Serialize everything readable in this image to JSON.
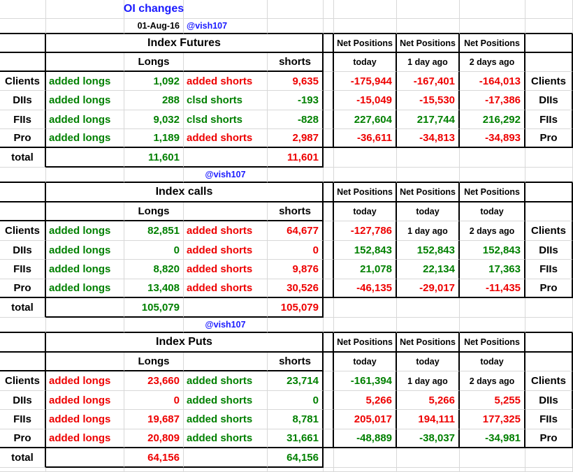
{
  "title": "OI changes",
  "date": "01-Aug-16",
  "handle": "@vish107",
  "net_header": "Net Positions",
  "colors": {
    "green": "#008000",
    "red": "#ee0000",
    "blue": "#1a1aff",
    "black": "#000000"
  },
  "sections": [
    {
      "title": "Index Futures",
      "longs_header": "Longs",
      "shorts_header": "shorts",
      "net_subheaders": [
        "today",
        "1 day ago",
        "2 days ago"
      ],
      "rows": [
        {
          "label": "Clients",
          "long_action": {
            "text": "added longs",
            "color": "green"
          },
          "long_value": {
            "text": "1,092",
            "color": "green"
          },
          "short_action": {
            "text": "added shorts",
            "color": "red"
          },
          "short_value": {
            "text": "9,635",
            "color": "red"
          },
          "net": [
            {
              "text": "-175,944",
              "color": "red"
            },
            {
              "text": "-167,401",
              "color": "red"
            },
            {
              "text": "-164,013",
              "color": "red"
            }
          ]
        },
        {
          "label": "DIIs",
          "long_action": {
            "text": "added longs",
            "color": "green"
          },
          "long_value": {
            "text": "288",
            "color": "green"
          },
          "short_action": {
            "text": "clsd shorts",
            "color": "green"
          },
          "short_value": {
            "text": "-193",
            "color": "green"
          },
          "net": [
            {
              "text": "-15,049",
              "color": "red"
            },
            {
              "text": "-15,530",
              "color": "red"
            },
            {
              "text": "-17,386",
              "color": "red"
            }
          ]
        },
        {
          "label": "FIIs",
          "long_action": {
            "text": "added longs",
            "color": "green"
          },
          "long_value": {
            "text": "9,032",
            "color": "green"
          },
          "short_action": {
            "text": "clsd shorts",
            "color": "green"
          },
          "short_value": {
            "text": "-828",
            "color": "green"
          },
          "net": [
            {
              "text": "227,604",
              "color": "green"
            },
            {
              "text": "217,744",
              "color": "green"
            },
            {
              "text": "216,292",
              "color": "green"
            }
          ]
        },
        {
          "label": "Pro",
          "long_action": {
            "text": "added longs",
            "color": "green"
          },
          "long_value": {
            "text": "1,189",
            "color": "green"
          },
          "short_action": {
            "text": "added shorts",
            "color": "red"
          },
          "short_value": {
            "text": "2,987",
            "color": "red"
          },
          "net": [
            {
              "text": "-36,611",
              "color": "red"
            },
            {
              "text": "-34,813",
              "color": "red"
            },
            {
              "text": "-34,893",
              "color": "red"
            }
          ]
        }
      ],
      "total_label": "total",
      "total_longs": {
        "text": "11,601",
        "color": "green"
      },
      "total_shorts": {
        "text": "11,601",
        "color": "red"
      }
    },
    {
      "title": "Index calls",
      "longs_header": "Longs",
      "shorts_header": "shorts",
      "net_subheaders": [
        "today",
        "today",
        "today"
      ],
      "rows": [
        {
          "label": "Clients",
          "long_action": {
            "text": "added longs",
            "color": "green"
          },
          "long_value": {
            "text": "82,851",
            "color": "green"
          },
          "short_action": {
            "text": "added shorts",
            "color": "red"
          },
          "short_value": {
            "text": "64,677",
            "color": "red"
          },
          "net": [
            {
              "text": "-127,786",
              "color": "red"
            },
            {
              "text": "1 day ago",
              "color": "black"
            },
            {
              "text": "2 days ago",
              "color": "black"
            }
          ]
        },
        {
          "label": "DIIs",
          "long_action": {
            "text": "added longs",
            "color": "green"
          },
          "long_value": {
            "text": "0",
            "color": "green"
          },
          "short_action": {
            "text": "added shorts",
            "color": "red"
          },
          "short_value": {
            "text": "0",
            "color": "red"
          },
          "net": [
            {
              "text": "152,843",
              "color": "green"
            },
            {
              "text": "152,843",
              "color": "green"
            },
            {
              "text": "152,843",
              "color": "green"
            }
          ]
        },
        {
          "label": "FIIs",
          "long_action": {
            "text": "added longs",
            "color": "green"
          },
          "long_value": {
            "text": "8,820",
            "color": "green"
          },
          "short_action": {
            "text": "added shorts",
            "color": "red"
          },
          "short_value": {
            "text": "9,876",
            "color": "red"
          },
          "net": [
            {
              "text": "21,078",
              "color": "green"
            },
            {
              "text": "22,134",
              "color": "green"
            },
            {
              "text": "17,363",
              "color": "green"
            }
          ]
        },
        {
          "label": "Pro",
          "long_action": {
            "text": "added longs",
            "color": "green"
          },
          "long_value": {
            "text": "13,408",
            "color": "green"
          },
          "short_action": {
            "text": "added shorts",
            "color": "red"
          },
          "short_value": {
            "text": "30,526",
            "color": "red"
          },
          "net": [
            {
              "text": "-46,135",
              "color": "red"
            },
            {
              "text": "-29,017",
              "color": "red"
            },
            {
              "text": "-11,435",
              "color": "red"
            }
          ]
        }
      ],
      "total_label": "total",
      "total_longs": {
        "text": "105,079",
        "color": "green"
      },
      "total_shorts": {
        "text": "105,079",
        "color": "red"
      }
    },
    {
      "title": "Index Puts",
      "longs_header": "Longs",
      "shorts_header": "shorts",
      "net_subheaders": [
        "today",
        "today",
        "today"
      ],
      "rows": [
        {
          "label": "Clients",
          "long_action": {
            "text": "added longs",
            "color": "red"
          },
          "long_value": {
            "text": "23,660",
            "color": "red"
          },
          "short_action": {
            "text": "added shorts",
            "color": "green"
          },
          "short_value": {
            "text": "23,714",
            "color": "green"
          },
          "net": [
            {
              "text": "-161,394",
              "color": "green"
            },
            {
              "text": "1 day ago",
              "color": "black"
            },
            {
              "text": "2 days ago",
              "color": "black"
            }
          ]
        },
        {
          "label": "DIIs",
          "long_action": {
            "text": "added longs",
            "color": "red"
          },
          "long_value": {
            "text": "0",
            "color": "red"
          },
          "short_action": {
            "text": "added shorts",
            "color": "green"
          },
          "short_value": {
            "text": "0",
            "color": "green"
          },
          "net": [
            {
              "text": "5,266",
              "color": "red"
            },
            {
              "text": "5,266",
              "color": "red"
            },
            {
              "text": "5,255",
              "color": "red"
            }
          ]
        },
        {
          "label": "FIIs",
          "long_action": {
            "text": "added longs",
            "color": "red"
          },
          "long_value": {
            "text": "19,687",
            "color": "red"
          },
          "short_action": {
            "text": "added shorts",
            "color": "green"
          },
          "short_value": {
            "text": "8,781",
            "color": "green"
          },
          "net": [
            {
              "text": "205,017",
              "color": "red"
            },
            {
              "text": "194,111",
              "color": "red"
            },
            {
              "text": "177,325",
              "color": "red"
            }
          ]
        },
        {
          "label": "Pro",
          "long_action": {
            "text": "added longs",
            "color": "red"
          },
          "long_value": {
            "text": "20,809",
            "color": "red"
          },
          "short_action": {
            "text": "added shorts",
            "color": "green"
          },
          "short_value": {
            "text": "31,661",
            "color": "green"
          },
          "net": [
            {
              "text": "-48,889",
              "color": "green"
            },
            {
              "text": "-38,037",
              "color": "green"
            },
            {
              "text": "-34,981",
              "color": "green"
            }
          ]
        }
      ],
      "total_label": "total",
      "total_longs": {
        "text": "64,156",
        "color": "red"
      },
      "total_shorts": {
        "text": "64,156",
        "color": "green"
      }
    }
  ]
}
